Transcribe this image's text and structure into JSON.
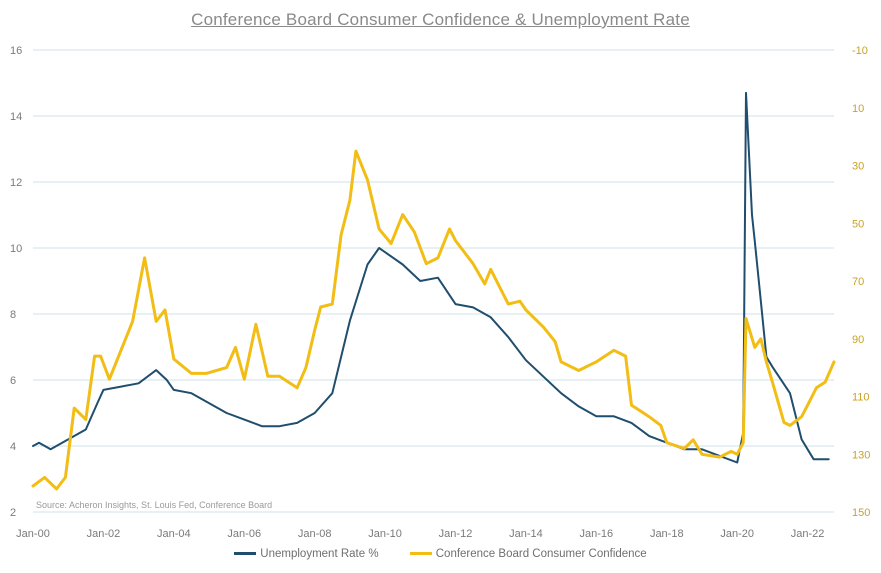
{
  "title": "Conference Board Consumer Confidence & Unemployment Rate",
  "source": "Source: Acheron Insights, St. Louis Fed, Conference Board",
  "colors": {
    "unemployment": "#1f4e6e",
    "confidence": "#f2bd14",
    "grid": "#cfe3ea"
  },
  "chart_data": {
    "type": "line",
    "title": "Conference Board Consumer Confidence & Unemployment Rate",
    "x_range": [
      2000.0,
      2022.75
    ],
    "left_axis": {
      "min": 2,
      "max": 16,
      "ticks": [
        "2",
        "4",
        "6",
        "8",
        "10",
        "12",
        "14",
        "16"
      ]
    },
    "right_axis": {
      "min": -10,
      "max": 150,
      "inverted": true,
      "ticks": [
        "-10",
        "10",
        "30",
        "50",
        "70",
        "90",
        "110",
        "130",
        "150"
      ]
    },
    "x_ticks": [
      "Jan-00",
      "Jan-02",
      "Jan-04",
      "Jan-06",
      "Jan-08",
      "Jan-10",
      "Jan-12",
      "Jan-14",
      "Jan-16",
      "Jan-18",
      "Jan-20",
      "Jan-22"
    ],
    "series": [
      {
        "name": "Unemployment Rate %",
        "axis": "left",
        "points": [
          [
            2000.0,
            4.0
          ],
          [
            2000.17,
            4.1
          ],
          [
            2000.5,
            3.9
          ],
          [
            2001.0,
            4.2
          ],
          [
            2001.5,
            4.5
          ],
          [
            2001.83,
            5.3
          ],
          [
            2002.0,
            5.7
          ],
          [
            2002.5,
            5.8
          ],
          [
            2003.0,
            5.9
          ],
          [
            2003.5,
            6.3
          ],
          [
            2003.8,
            6.0
          ],
          [
            2004.0,
            5.7
          ],
          [
            2004.5,
            5.6
          ],
          [
            2005.0,
            5.3
          ],
          [
            2005.5,
            5.0
          ],
          [
            2006.0,
            4.8
          ],
          [
            2006.5,
            4.6
          ],
          [
            2007.0,
            4.6
          ],
          [
            2007.5,
            4.7
          ],
          [
            2008.0,
            5.0
          ],
          [
            2008.5,
            5.6
          ],
          [
            2009.0,
            7.8
          ],
          [
            2009.5,
            9.5
          ],
          [
            2009.83,
            10.0
          ],
          [
            2010.5,
            9.5
          ],
          [
            2011.0,
            9.0
          ],
          [
            2011.5,
            9.1
          ],
          [
            2012.0,
            8.3
          ],
          [
            2012.5,
            8.2
          ],
          [
            2013.0,
            7.9
          ],
          [
            2013.5,
            7.3
          ],
          [
            2014.0,
            6.6
          ],
          [
            2014.5,
            6.1
          ],
          [
            2015.0,
            5.6
          ],
          [
            2015.5,
            5.2
          ],
          [
            2016.0,
            4.9
          ],
          [
            2016.5,
            4.9
          ],
          [
            2017.0,
            4.7
          ],
          [
            2017.5,
            4.3
          ],
          [
            2018.0,
            4.1
          ],
          [
            2018.5,
            3.9
          ],
          [
            2019.0,
            3.9
          ],
          [
            2019.5,
            3.7
          ],
          [
            2020.0,
            3.5
          ],
          [
            2020.17,
            4.4
          ],
          [
            2020.25,
            14.7
          ],
          [
            2020.42,
            11.0
          ],
          [
            2020.5,
            10.2
          ],
          [
            2020.67,
            8.4
          ],
          [
            2020.83,
            6.7
          ],
          [
            2021.0,
            6.4
          ],
          [
            2021.5,
            5.6
          ],
          [
            2021.83,
            4.2
          ],
          [
            2022.0,
            3.9
          ],
          [
            2022.17,
            3.6
          ],
          [
            2022.6,
            3.6
          ]
        ]
      },
      {
        "name": "Conference Board Consumer Confidence",
        "axis": "right",
        "points": [
          [
            2000.0,
            141
          ],
          [
            2000.33,
            138
          ],
          [
            2000.67,
            142
          ],
          [
            2000.92,
            138
          ],
          [
            2001.17,
            114
          ],
          [
            2001.5,
            118
          ],
          [
            2001.75,
            96
          ],
          [
            2001.92,
            96
          ],
          [
            2002.17,
            104
          ],
          [
            2002.5,
            94
          ],
          [
            2002.83,
            84
          ],
          [
            2003.17,
            62
          ],
          [
            2003.5,
            84
          ],
          [
            2003.75,
            80
          ],
          [
            2004.0,
            97
          ],
          [
            2004.5,
            102
          ],
          [
            2004.92,
            102
          ],
          [
            2005.5,
            100
          ],
          [
            2005.75,
            93
          ],
          [
            2006.0,
            104
          ],
          [
            2006.33,
            85
          ],
          [
            2006.67,
            103
          ],
          [
            2007.0,
            103
          ],
          [
            2007.5,
            107
          ],
          [
            2007.75,
            100
          ],
          [
            2008.0,
            87
          ],
          [
            2008.17,
            79
          ],
          [
            2008.5,
            78
          ],
          [
            2008.75,
            54
          ],
          [
            2009.0,
            42
          ],
          [
            2009.17,
            25
          ],
          [
            2009.5,
            35
          ],
          [
            2009.83,
            52
          ],
          [
            2010.17,
            57
          ],
          [
            2010.5,
            47
          ],
          [
            2010.83,
            53
          ],
          [
            2011.17,
            64
          ],
          [
            2011.5,
            62
          ],
          [
            2011.83,
            52
          ],
          [
            2012.0,
            56
          ],
          [
            2012.5,
            64
          ],
          [
            2012.83,
            71
          ],
          [
            2013.0,
            66
          ],
          [
            2013.5,
            78
          ],
          [
            2013.83,
            77
          ],
          [
            2014.0,
            80
          ],
          [
            2014.5,
            86
          ],
          [
            2014.83,
            91
          ],
          [
            2015.0,
            98
          ],
          [
            2015.5,
            101
          ],
          [
            2015.83,
            99
          ],
          [
            2016.0,
            98
          ],
          [
            2016.5,
            94
          ],
          [
            2016.83,
            96
          ],
          [
            2017.0,
            113
          ],
          [
            2017.5,
            117
          ],
          [
            2017.83,
            120
          ],
          [
            2018.0,
            126
          ],
          [
            2018.5,
            128
          ],
          [
            2018.75,
            125
          ],
          [
            2019.0,
            130
          ],
          [
            2019.5,
            131
          ],
          [
            2019.83,
            129
          ],
          [
            2020.0,
            130
          ],
          [
            2020.17,
            126
          ],
          [
            2020.25,
            83
          ],
          [
            2020.5,
            93
          ],
          [
            2020.67,
            90
          ],
          [
            2020.83,
            98
          ],
          [
            2021.0,
            105
          ],
          [
            2021.33,
            119
          ],
          [
            2021.5,
            120
          ],
          [
            2021.83,
            117
          ],
          [
            2022.0,
            113
          ],
          [
            2022.25,
            107
          ],
          [
            2022.5,
            105
          ],
          [
            2022.75,
            98
          ]
        ]
      }
    ]
  },
  "legend": {
    "unemployment": "Unemployment Rate %",
    "confidence": "Conference Board Consumer Confidence"
  }
}
